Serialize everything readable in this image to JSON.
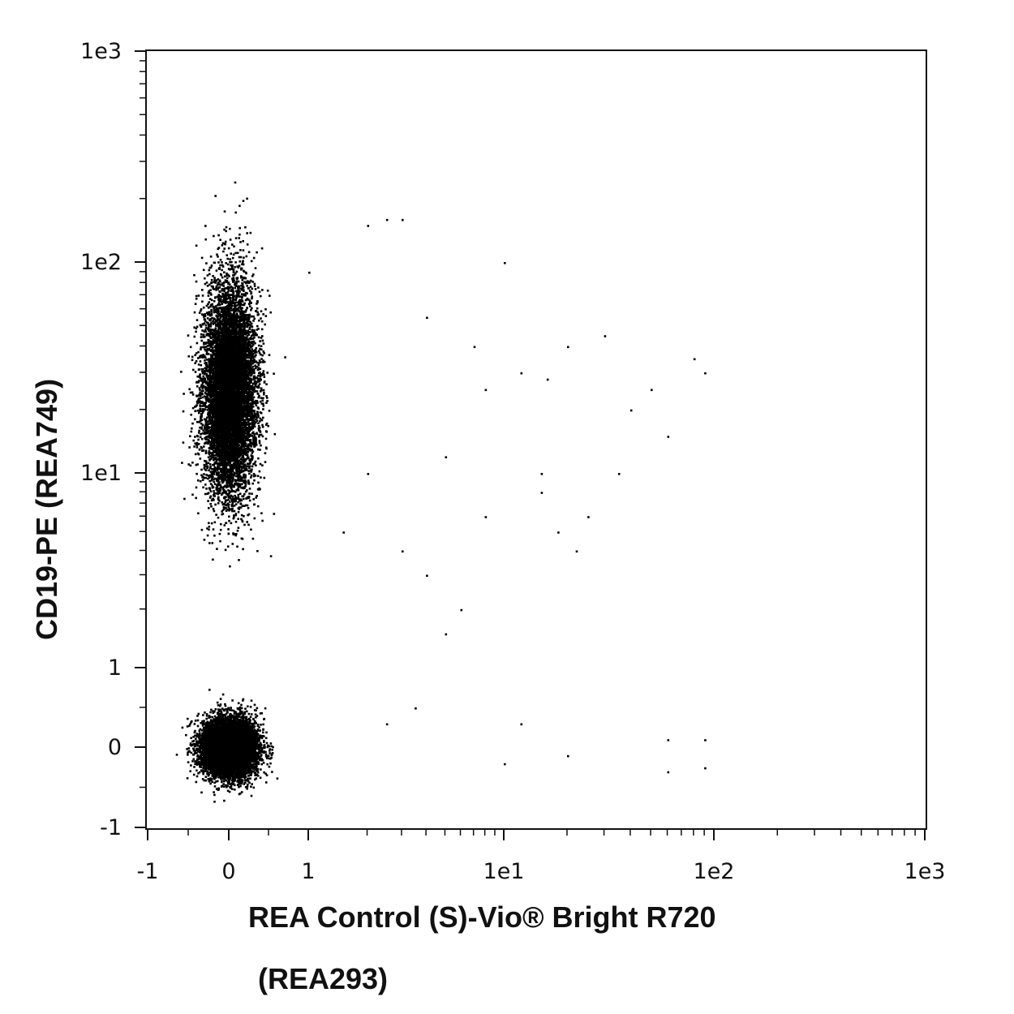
{
  "chart_data": {
    "type": "scatter",
    "title": "",
    "xlabel_line1": "REA Control (S)-Vio® Bright R720",
    "xlabel_line2": "(REA293)",
    "ylabel": "CD19-PE (REA749)",
    "x_scale": "biexponential",
    "y_scale": "biexponential",
    "xlim": [
      -1,
      1000
    ],
    "ylim": [
      -1,
      1000
    ],
    "x_tick_labels": [
      "-1",
      "0",
      "1",
      "1e1",
      "1e2",
      "1e3"
    ],
    "y_tick_labels": [
      "-1",
      "0",
      "1",
      "1e1",
      "1e2",
      "1e3"
    ],
    "grid": false,
    "color": "#000000",
    "populations": [
      {
        "name": "",
        "center": [
          0.0,
          0.0
        ],
        "spread": [
          0.3,
          0.35
        ],
        "count": 9000
      },
      {
        "name": "",
        "center": [
          0.0,
          25
        ],
        "spread": [
          0.3,
          0.45
        ],
        "count": 9000
      }
    ],
    "sparse_points": [
      [
        10,
        100
      ],
      [
        -0.3,
        150
      ],
      [
        2.5,
        160
      ],
      [
        3,
        160
      ],
      [
        2,
        150
      ],
      [
        20,
        40
      ],
      [
        30,
        45
      ],
      [
        80,
        35
      ],
      [
        90,
        30
      ],
      [
        40,
        20
      ],
      [
        60,
        15
      ],
      [
        50,
        25
      ],
      [
        35,
        10
      ],
      [
        25,
        6
      ],
      [
        15,
        8
      ],
      [
        12,
        0.3
      ],
      [
        20,
        -0.1
      ],
      [
        60,
        0.1
      ],
      [
        90,
        0.1
      ],
      [
        60,
        -0.3
      ],
      [
        90,
        -0.25
      ],
      [
        10,
        -0.2
      ],
      [
        5,
        1.5
      ],
      [
        4,
        3
      ],
      [
        6,
        2
      ],
      [
        3,
        4
      ],
      [
        1.5,
        5
      ],
      [
        2,
        10
      ],
      [
        5,
        12
      ],
      [
        8,
        25
      ],
      [
        12,
        30
      ],
      [
        16,
        28
      ],
      [
        7,
        40
      ],
      [
        4,
        55
      ],
      [
        1,
        90
      ],
      [
        0.5,
        70
      ],
      [
        18,
        5
      ],
      [
        22,
        4
      ],
      [
        8,
        6
      ],
      [
        15,
        10
      ],
      [
        3.5,
        0.5
      ],
      [
        2.5,
        0.3
      ]
    ]
  }
}
